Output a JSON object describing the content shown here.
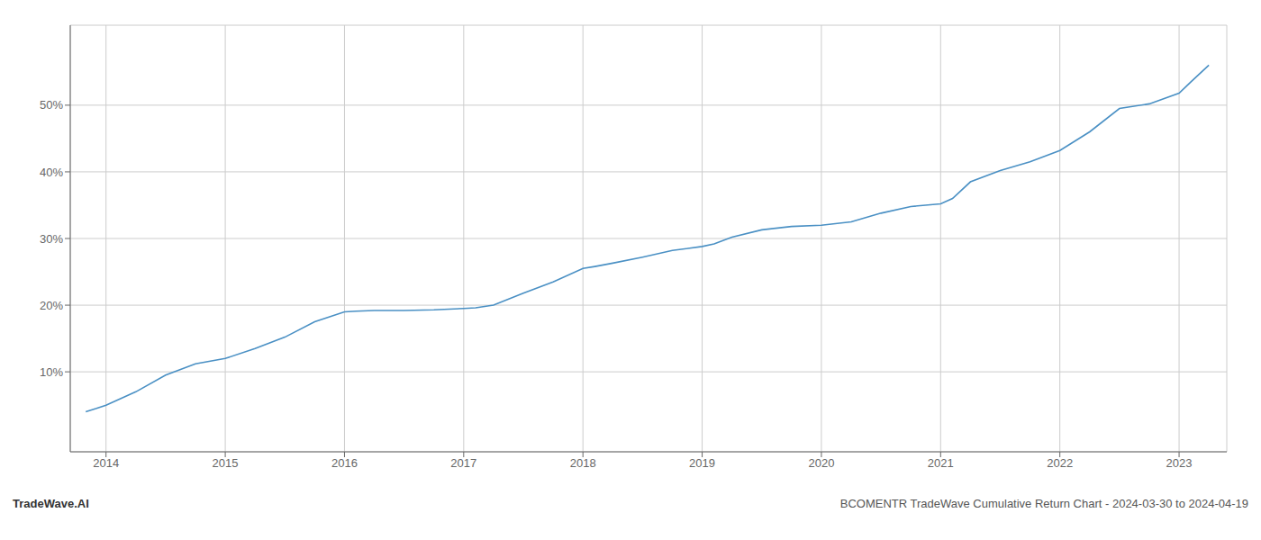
{
  "chart_data": {
    "type": "line",
    "title": "BCOMENTR TradeWave Cumulative Return Chart - 2024-03-30 to 2024-04-19",
    "annotations": [
      "TradeWave.AI"
    ],
    "x": [
      2013.83,
      2013.92,
      2014.0,
      2014.25,
      2014.5,
      2014.75,
      2015.0,
      2015.25,
      2015.5,
      2015.75,
      2016.0,
      2016.1,
      2016.25,
      2016.5,
      2016.75,
      2017.0,
      2017.1,
      2017.25,
      2017.5,
      2017.75,
      2018.0,
      2018.1,
      2018.25,
      2018.5,
      2018.75,
      2019.0,
      2019.1,
      2019.25,
      2019.5,
      2019.75,
      2020.0,
      2020.1,
      2020.25,
      2020.5,
      2020.75,
      2021.0,
      2021.1,
      2021.25,
      2021.5,
      2021.75,
      2022.0,
      2022.25,
      2022.5,
      2022.75,
      2023.0,
      2023.1,
      2023.25
    ],
    "values": [
      4.0,
      4.5,
      5.0,
      7.0,
      9.5,
      11.2,
      12.0,
      13.5,
      15.2,
      17.5,
      19.0,
      19.1,
      19.2,
      19.2,
      19.3,
      19.5,
      19.6,
      20.0,
      21.8,
      23.5,
      25.5,
      25.8,
      26.3,
      27.2,
      28.2,
      28.8,
      29.2,
      30.2,
      31.3,
      31.8,
      32.0,
      32.2,
      32.5,
      33.8,
      34.8,
      35.2,
      36.0,
      38.5,
      40.2,
      41.5,
      43.2,
      46.0,
      49.5,
      50.2,
      51.8,
      53.5,
      56.0
    ],
    "color": "#4a90c4",
    "xlim": [
      2013.7,
      2023.4
    ],
    "ylim": [
      -2,
      62
    ],
    "xticks": [
      2014,
      2015,
      2016,
      2017,
      2018,
      2019,
      2020,
      2021,
      2022,
      2023
    ],
    "yticks": [
      {
        "value": 10,
        "label": "10%"
      },
      {
        "value": 20,
        "label": "20%"
      },
      {
        "value": 30,
        "label": "30%"
      },
      {
        "value": 40,
        "label": "40%"
      },
      {
        "value": 50,
        "label": "50%"
      }
    ],
    "grid": true
  }
}
